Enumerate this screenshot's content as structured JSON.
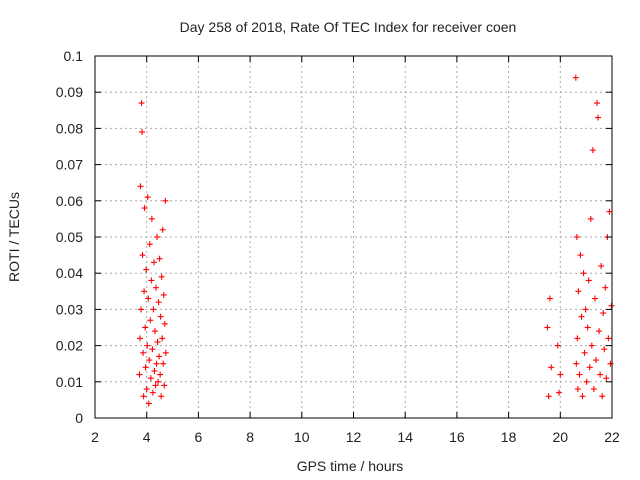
{
  "chart_data": {
    "type": "scatter",
    "title": "Day 258 of 2018, Rate Of TEC Index for receiver coen",
    "xlabel": "GPS time / hours",
    "ylabel": "ROTI / TECUs",
    "xlim": [
      2,
      22
    ],
    "ylim": [
      0,
      0.1
    ],
    "x_ticks": [
      "2",
      "4",
      "6",
      "8",
      "10",
      "12",
      "14",
      "16",
      "18",
      "20",
      "22"
    ],
    "y_ticks": [
      "0",
      "0.01",
      "0.02",
      "0.03",
      "0.04",
      "0.05",
      "0.06",
      "0.07",
      "0.08",
      "0.09",
      "0.1"
    ],
    "grid": true,
    "marker": "+",
    "color": "#ff0000",
    "series": [
      {
        "points": [
          [
            3.72,
            0.012
          ],
          [
            3.74,
            0.022
          ],
          [
            3.76,
            0.064
          ],
          [
            3.78,
            0.03
          ],
          [
            3.8,
            0.087
          ],
          [
            3.82,
            0.079
          ],
          [
            3.84,
            0.045
          ],
          [
            3.86,
            0.018
          ],
          [
            3.88,
            0.006
          ],
          [
            3.9,
            0.035
          ],
          [
            3.92,
            0.058
          ],
          [
            3.94,
            0.025
          ],
          [
            3.96,
            0.014
          ],
          [
            3.98,
            0.041
          ],
          [
            4.0,
            0.008
          ],
          [
            4.02,
            0.02
          ],
          [
            4.04,
            0.061
          ],
          [
            4.06,
            0.033
          ],
          [
            4.08,
            0.004
          ],
          [
            4.1,
            0.016
          ],
          [
            4.12,
            0.048
          ],
          [
            4.14,
            0.027
          ],
          [
            4.16,
            0.011
          ],
          [
            4.18,
            0.038
          ],
          [
            4.2,
            0.055
          ],
          [
            4.22,
            0.019
          ],
          [
            4.24,
            0.007
          ],
          [
            4.26,
            0.03
          ],
          [
            4.28,
            0.043
          ],
          [
            4.3,
            0.013
          ],
          [
            4.32,
            0.024
          ],
          [
            4.34,
            0.009
          ],
          [
            4.36,
            0.036
          ],
          [
            4.38,
            0.015
          ],
          [
            4.4,
            0.05
          ],
          [
            4.42,
            0.021
          ],
          [
            4.44,
            0.01
          ],
          [
            4.46,
            0.032
          ],
          [
            4.48,
            0.017
          ],
          [
            4.5,
            0.044
          ],
          [
            4.52,
            0.012
          ],
          [
            4.54,
            0.028
          ],
          [
            4.56,
            0.006
          ],
          [
            4.58,
            0.039
          ],
          [
            4.6,
            0.022
          ],
          [
            4.62,
            0.052
          ],
          [
            4.64,
            0.015
          ],
          [
            4.66,
            0.034
          ],
          [
            4.68,
            0.009
          ],
          [
            4.7,
            0.026
          ],
          [
            4.72,
            0.06
          ],
          [
            4.74,
            0.018
          ],
          [
            19.5,
            0.025
          ],
          [
            19.55,
            0.006
          ],
          [
            19.6,
            0.033
          ],
          [
            19.65,
            0.014
          ],
          [
            19.9,
            0.02
          ],
          [
            19.95,
            0.007
          ],
          [
            20.0,
            0.012
          ],
          [
            20.6,
            0.094
          ],
          [
            20.62,
            0.015
          ],
          [
            20.64,
            0.05
          ],
          [
            20.66,
            0.022
          ],
          [
            20.68,
            0.008
          ],
          [
            20.7,
            0.035
          ],
          [
            20.74,
            0.012
          ],
          [
            20.78,
            0.045
          ],
          [
            20.82,
            0.028
          ],
          [
            20.86,
            0.006
          ],
          [
            20.9,
            0.04
          ],
          [
            20.94,
            0.018
          ],
          [
            20.98,
            0.03
          ],
          [
            21.02,
            0.01
          ],
          [
            21.06,
            0.025
          ],
          [
            21.1,
            0.038
          ],
          [
            21.14,
            0.014
          ],
          [
            21.18,
            0.055
          ],
          [
            21.22,
            0.02
          ],
          [
            21.26,
            0.074
          ],
          [
            21.3,
            0.008
          ],
          [
            21.34,
            0.033
          ],
          [
            21.38,
            0.016
          ],
          [
            21.42,
            0.087
          ],
          [
            21.46,
            0.083
          ],
          [
            21.5,
            0.024
          ],
          [
            21.54,
            0.012
          ],
          [
            21.58,
            0.042
          ],
          [
            21.62,
            0.006
          ],
          [
            21.66,
            0.029
          ],
          [
            21.7,
            0.019
          ],
          [
            21.74,
            0.036
          ],
          [
            21.78,
            0.011
          ],
          [
            21.82,
            0.05
          ],
          [
            21.86,
            0.022
          ],
          [
            21.9,
            0.057
          ],
          [
            21.94,
            0.015
          ],
          [
            21.98,
            0.031
          ]
        ]
      }
    ]
  }
}
